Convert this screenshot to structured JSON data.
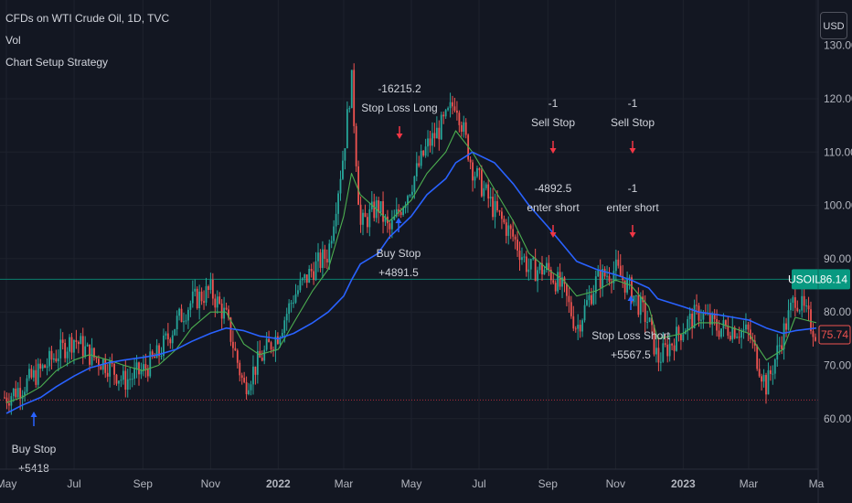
{
  "header": {
    "title": "CFDs on WTI Crude Oil, 1D, TVC",
    "indicator_vol": "Vol",
    "indicator_strategy": "Chart Setup Strategy"
  },
  "currency_button": "USD",
  "price_scale": {
    "top_partial_label": "130.00",
    "labels": [
      "120.00",
      "110.00",
      "100.00",
      "90.00",
      "80.00",
      "70.00",
      "60.00"
    ],
    "values": [
      120,
      110,
      100,
      90,
      80,
      70,
      60
    ]
  },
  "time_axis": {
    "labels": [
      "May",
      "Jul",
      "Sep",
      "Nov",
      "2022",
      "Mar",
      "May",
      "Jul",
      "Sep",
      "Nov",
      "2023",
      "Mar",
      "Ma"
    ]
  },
  "badges": {
    "symbol": "USOIL",
    "symbol_price": "86.14",
    "close_price": "75.74"
  },
  "colors": {
    "background": "#131722",
    "up_candle": "#26a69a",
    "down_candle": "#ef5350",
    "long_ma": "#2962ff",
    "short_ma": "#4caf50",
    "buy_arrow": "#2962ff",
    "sell_arrow": "#f23645",
    "symbol_badge": "#089981"
  },
  "chart_data": {
    "type": "line",
    "title": "CFDs on WTI Crude Oil, 1D, TVC",
    "ylim": [
      58,
      132
    ],
    "x": [
      "2021-05-01",
      "2021-05-15",
      "2021-06-01",
      "2021-06-15",
      "2021-07-01",
      "2021-07-15",
      "2021-08-01",
      "2021-08-15",
      "2021-09-01",
      "2021-09-15",
      "2021-10-01",
      "2021-10-15",
      "2021-11-01",
      "2021-11-15",
      "2021-12-01",
      "2021-12-15",
      "2022-01-01",
      "2022-01-15",
      "2022-02-01",
      "2022-02-15",
      "2022-03-01",
      "2022-03-08",
      "2022-03-16",
      "2022-04-01",
      "2022-04-11",
      "2022-05-01",
      "2022-05-15",
      "2022-06-01",
      "2022-06-10",
      "2022-06-25",
      "2022-07-15",
      "2022-08-01",
      "2022-08-15",
      "2022-09-01",
      "2022-09-15",
      "2022-09-27",
      "2022-10-15",
      "2022-11-01",
      "2022-11-15",
      "2022-12-01",
      "2022-12-09",
      "2023-01-01",
      "2023-01-15",
      "2023-02-01",
      "2023-02-15",
      "2023-03-01",
      "2023-03-17",
      "2023-04-01",
      "2023-04-12",
      "2023-05-01"
    ],
    "series": [
      {
        "name": "USOIL",
        "values": [
          64,
          66,
          69,
          72,
          75,
          72,
          70,
          67,
          69,
          72,
          78,
          82,
          84,
          79,
          66,
          71,
          76,
          83,
          88,
          91,
          110,
          124,
          96,
          100,
          95,
          104,
          111,
          116,
          120,
          107,
          99,
          94,
          88,
          88,
          84,
          77,
          86,
          88,
          84,
          78,
          71,
          77,
          80,
          77,
          77,
          76,
          66,
          76,
          83,
          76
        ]
      },
      {
        "values": [
          63,
          64,
          66,
          69,
          71,
          72,
          71,
          70,
          69,
          70,
          73,
          77,
          80,
          80,
          74,
          72,
          73,
          78,
          84,
          88,
          98,
          106,
          102,
          99,
          97,
          101,
          106,
          110,
          114,
          110,
          103,
          97,
          91,
          88,
          86,
          83,
          84,
          86,
          85,
          81,
          75,
          76,
          78,
          78,
          77,
          76,
          71,
          73,
          79,
          78
        ]
      },
      {
        "values": [
          61,
          62.5,
          64,
          66,
          68,
          69.5,
          70.5,
          71,
          71.5,
          72,
          73,
          74.5,
          76,
          77,
          76.5,
          75.5,
          75,
          76,
          78,
          80,
          83,
          86,
          89,
          91,
          94,
          98,
          102,
          105,
          108,
          110,
          108,
          104,
          100,
          96,
          92.5,
          89.5,
          88,
          87,
          86,
          84.5,
          82.5,
          81,
          80,
          79.5,
          79,
          78.5,
          77,
          76,
          76.5,
          77
        ]
      }
    ],
    "annotations": [
      {
        "x": "2021-05-10",
        "type": "buy",
        "lines": [
          "Buy Stop",
          "+5418"
        ]
      },
      {
        "x": "2022-04-05",
        "type": "buy",
        "lines": [
          "Buy Stop",
          "+4891.5"
        ]
      },
      {
        "x": "2022-04-08",
        "type": "sell",
        "lines": [
          "-16215.2",
          "Stop Loss Long"
        ]
      },
      {
        "x": "2022-09-01",
        "type": "sell",
        "lines": [
          "-1",
          "Sell Stop"
        ]
      },
      {
        "x": "2022-09-01",
        "type": "sell",
        "lines": [
          "-4892.5",
          "enter short"
        ]
      },
      {
        "x": "2022-11-15",
        "type": "sell",
        "lines": [
          "-1",
          "Sell Stop"
        ]
      },
      {
        "x": "2022-11-15",
        "type": "sell",
        "lines": [
          "-1",
          "enter short"
        ]
      },
      {
        "x": "2022-11-15",
        "type": "buy",
        "lines": [
          "Stop Loss Short",
          "+5567.5"
        ]
      }
    ],
    "horizontal_lines": [
      86.14,
      63.5
    ]
  }
}
